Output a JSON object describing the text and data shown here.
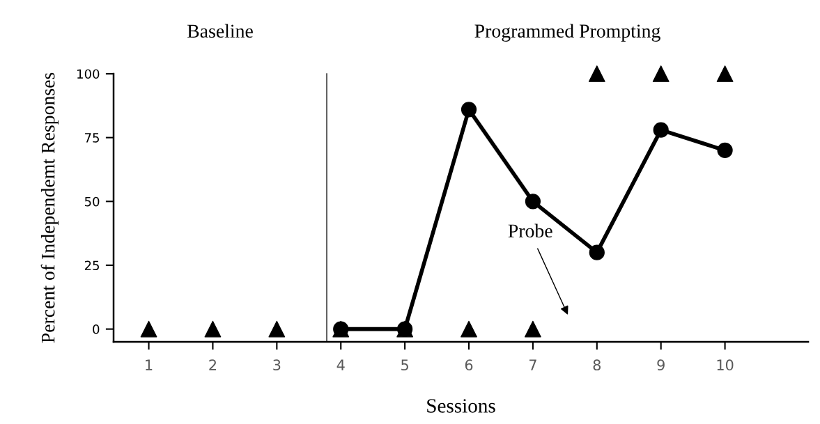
{
  "chart_data": {
    "type": "line",
    "x": [
      1,
      2,
      3,
      4,
      5,
      6,
      7,
      8,
      9,
      10
    ],
    "series": [
      {
        "color": "#000000",
        "marker": "circle",
        "values": [
          null,
          null,
          null,
          0,
          0,
          86,
          50,
          30,
          78,
          70
        ]
      },
      {
        "type": "scatter",
        "color": "#000000",
        "marker": "triangle",
        "values": [
          0,
          0,
          0,
          0,
          0,
          0,
          0,
          100,
          100,
          100
        ]
      }
    ],
    "xlabel": "Sessions",
    "ylabel": "Percent of Independemt Responses",
    "xlim": [
      0.45,
      11.3
    ],
    "xticks": [
      1,
      2,
      3,
      4,
      5,
      6,
      7,
      8,
      9,
      10
    ],
    "ylim": [
      -5,
      100
    ],
    "yticks": [
      0,
      25,
      50,
      75,
      100
    ],
    "ref_lines": [
      {
        "axis": "x",
        "value": 3.78,
        "color": "#404040"
      }
    ],
    "annotations": [
      "Baseline",
      "Programmed Prompting",
      "Probe"
    ],
    "grid": false
  }
}
